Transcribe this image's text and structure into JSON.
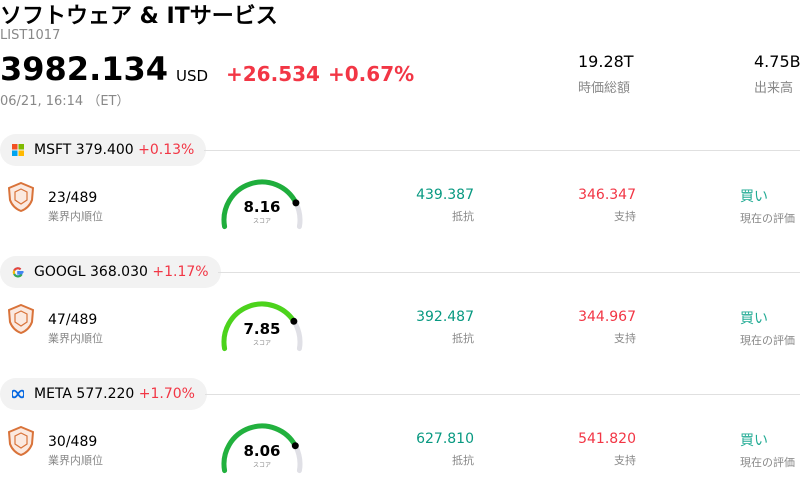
{
  "header": {
    "title": "ソフトウェア & ITサービス",
    "code": "LIST1017",
    "price": "3982.134",
    "currency": "USD",
    "change": "+26.534",
    "change_pct": "+0.67%",
    "time": "06/21, 16:14 （ET）",
    "stats": [
      {
        "value": "19.28T",
        "label": "時価総額"
      },
      {
        "value": "4.75B",
        "label": "出来高"
      }
    ]
  },
  "stocks": [
    {
      "ticker": "MSFT",
      "price": "379.400",
      "change_pct": "+0.13%",
      "rank": "23/489",
      "rank_label": "業界内順位",
      "score": 8.16,
      "score_label": "スコア",
      "resistance": "439.387",
      "resistance_label": "抵抗",
      "support": "346.347",
      "support_label": "支持",
      "rating": "買い",
      "rating_label": "現在の評価"
    },
    {
      "ticker": "GOOGL",
      "price": "368.030",
      "change_pct": "+1.17%",
      "rank": "47/489",
      "rank_label": "業界内順位",
      "score": 7.85,
      "score_label": "スコア",
      "resistance": "392.487",
      "resistance_label": "抵抗",
      "support": "344.967",
      "support_label": "支持",
      "rating": "買い",
      "rating_label": "現在の評価"
    },
    {
      "ticker": "META",
      "price": "577.220",
      "change_pct": "+1.70%",
      "rank": "30/489",
      "rank_label": "業界内順位",
      "score": 8.06,
      "score_label": "スコア",
      "resistance": "627.810",
      "resistance_label": "抵抗",
      "support": "541.820",
      "support_label": "支持",
      "rating": "買い",
      "rating_label": "現在の評価"
    }
  ]
}
